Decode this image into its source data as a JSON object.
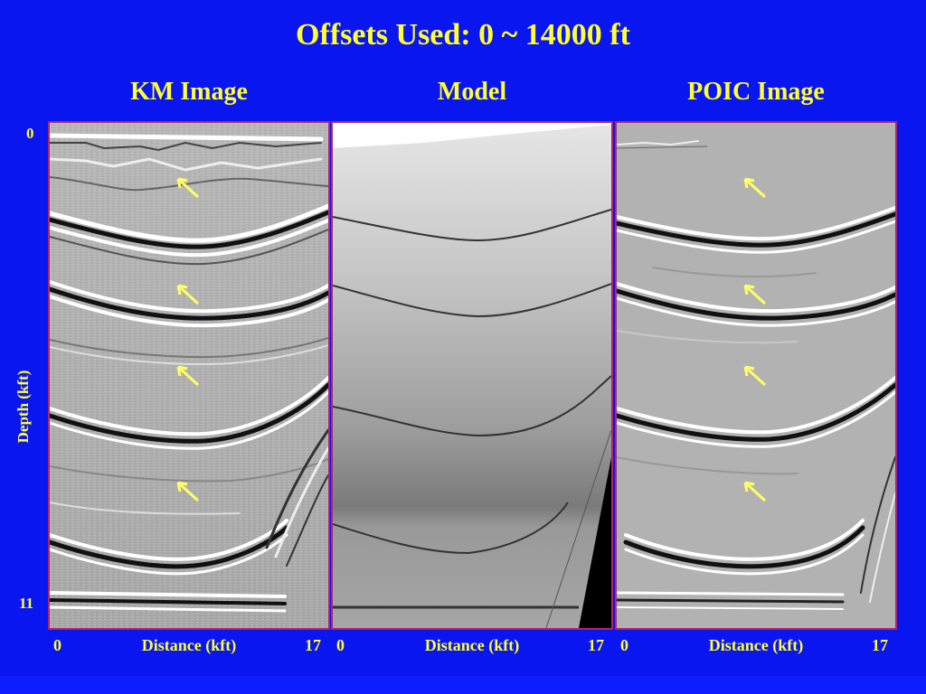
{
  "slide": {
    "title": "Offsets Used: 0 ~ 14000 ft",
    "panels": [
      {
        "title": "KM Image",
        "x_min": "0",
        "x_label": "Distance (kft)",
        "x_max": "17"
      },
      {
        "title": "Model",
        "x_min": "0",
        "x_label": "Distance (kft)",
        "x_max": "17"
      },
      {
        "title": "POIC Image",
        "x_min": "0",
        "x_label": "Distance (kft)",
        "x_max": "17"
      }
    ],
    "y_axis": {
      "label": "Depth (kft)",
      "min": "0",
      "max": "11"
    },
    "colors": {
      "background": "#0a16f0",
      "text": "#ffff33",
      "arrow": "#ffff66",
      "panel_border": "#b0246a"
    },
    "arrow_icon": "arrow-up-left-icon"
  }
}
